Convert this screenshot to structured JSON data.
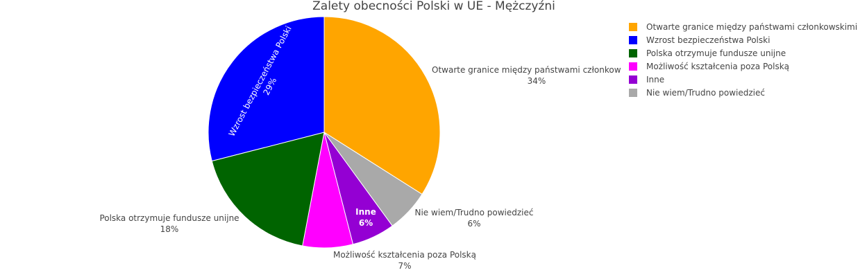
{
  "chart_data": {
    "type": "pie",
    "title": "Zalety obecności Polski w UE - Mężczyźni",
    "slices": [
      {
        "label": "Otwarte granice między państwami członkowskimi",
        "value": 34,
        "pct_text": "34%",
        "color": "#FFA500"
      },
      {
        "label": "Nie wiem/Trudno powiedzieć",
        "value": 6,
        "pct_text": "6%",
        "color": "#A9A9A9"
      },
      {
        "label": "Inne",
        "value": 6,
        "pct_text": "6%",
        "color": "#9400D3"
      },
      {
        "label": "Możliwość kształcenia poza Polską",
        "value": 7,
        "pct_text": "7%",
        "color": "#FF00FF"
      },
      {
        "label": "Polska otrzymuje fundusze unijne",
        "value": 18,
        "pct_text": "18%",
        "color": "#006400"
      },
      {
        "label": "Wzrost bezpieczeństwa Polski",
        "value": 29,
        "pct_text": "29%",
        "color": "#0000FF"
      }
    ],
    "legend": [
      {
        "label": "Otwarte granice między państwami członkowskimi",
        "color": "#FFA500"
      },
      {
        "label": "Wzrost bezpieczeństwa Polski",
        "color": "#0000FF"
      },
      {
        "label": "Polska otrzymuje fundusze unijne",
        "color": "#006400"
      },
      {
        "label": "Możliwość kształcenia poza Polską",
        "color": "#FF00FF"
      },
      {
        "label": "Inne",
        "color": "#9400D3"
      },
      {
        "label": "Nie wiem/Trudno powiedzieć",
        "color": "#A9A9A9"
      }
    ],
    "legend_position": "top-right"
  }
}
